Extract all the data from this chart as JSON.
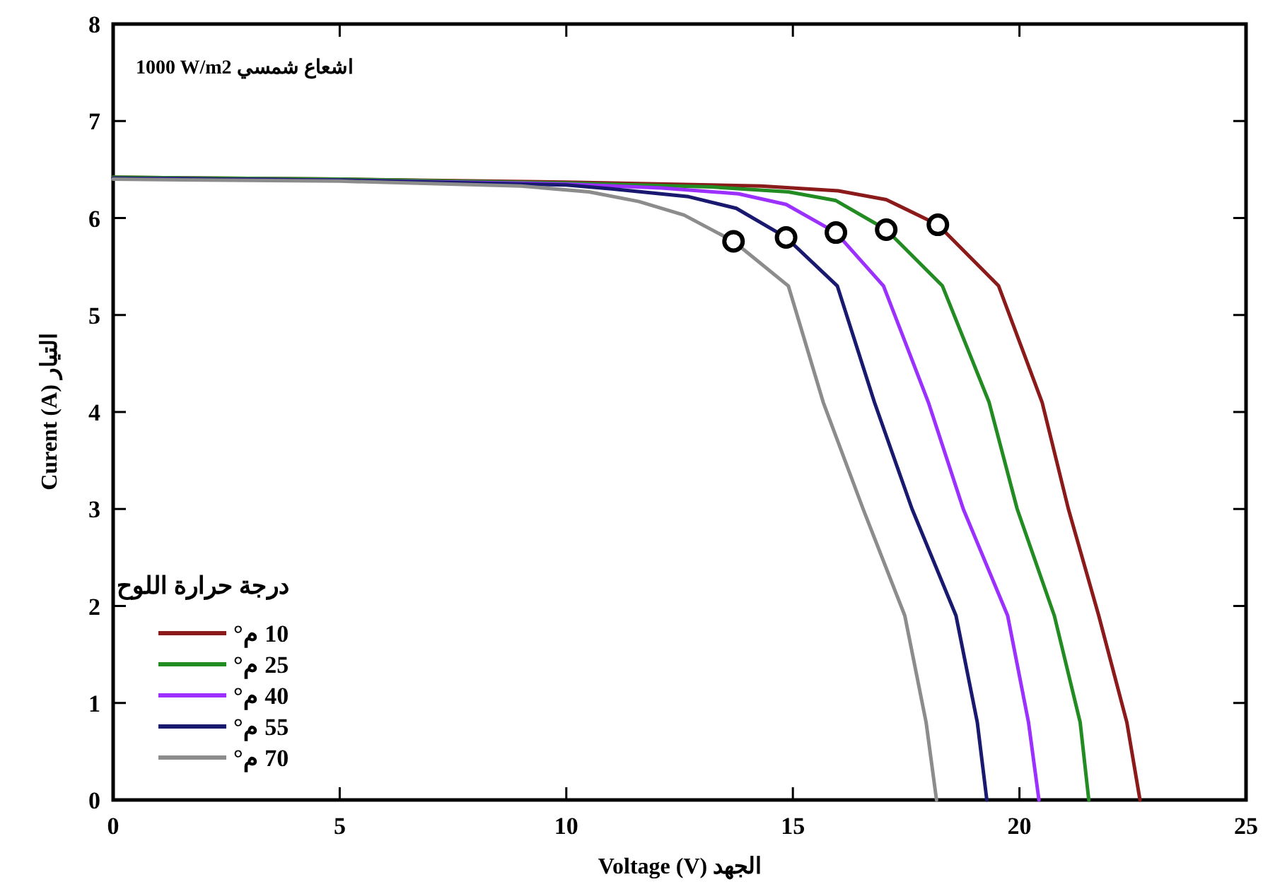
{
  "chart_data": {
    "type": "line",
    "xlabel": "Voltage (V) الجهد",
    "ylabel": "Curent (A) التيار",
    "legend_title": "درجة حرارة اللوح",
    "annotations": [
      "1000 W/m2 اشعاع شمسي"
    ],
    "xlim": [
      0,
      25
    ],
    "xticks": [
      0,
      5,
      10,
      15,
      20,
      25
    ],
    "ylim": [
      0,
      8
    ],
    "yticks": [
      0,
      1,
      2,
      3,
      4,
      5,
      6,
      7,
      8
    ],
    "grid": false,
    "legend": "bottom left",
    "marker": "none",
    "line_style": "solid",
    "series": [
      {
        "name": "10 م°",
        "color": "#8b1a1a",
        "x": [
          0,
          5,
          10,
          14.3,
          16,
          17.06,
          18.2,
          19.54,
          20.5,
          21.08,
          21.75,
          22.37,
          22.66
        ],
        "values": [
          6.42,
          6.4,
          6.37,
          6.33,
          6.28,
          6.19,
          5.93,
          5.3,
          4.1,
          3.0,
          1.9,
          0.8,
          0
        ]
      },
      {
        "name": "25 م°",
        "color": "#228b22",
        "x": [
          0,
          5,
          10,
          13.2,
          14.9,
          15.95,
          17.06,
          18.3,
          19.33,
          19.95,
          20.77,
          21.34,
          21.53
        ],
        "values": [
          6.42,
          6.4,
          6.36,
          6.32,
          6.27,
          6.18,
          5.88,
          5.3,
          4.1,
          3.0,
          1.9,
          0.8,
          0
        ]
      },
      {
        "name": "40 م°",
        "color": "#9b30ff",
        "x": [
          0,
          5,
          10,
          12.1,
          13.8,
          14.85,
          15.95,
          17.0,
          17.99,
          18.76,
          19.74,
          20.2,
          20.43
        ],
        "values": [
          6.41,
          6.39,
          6.35,
          6.31,
          6.25,
          6.14,
          5.85,
          5.3,
          4.1,
          3.0,
          1.9,
          0.8,
          0
        ]
      },
      {
        "name": "55 م°",
        "color": "#191970",
        "x": [
          0,
          5,
          10,
          11,
          12.7,
          13.75,
          14.85,
          15.98,
          16.8,
          17.63,
          18.6,
          19.07,
          19.28
        ],
        "values": [
          6.41,
          6.39,
          6.34,
          6.3,
          6.22,
          6.1,
          5.8,
          5.3,
          4.1,
          3.0,
          1.9,
          0.8,
          0
        ]
      },
      {
        "name": "70 م°",
        "color": "#8c8c8c",
        "x": [
          0,
          5,
          9,
          10.5,
          11.6,
          12.6,
          13.69,
          14.9,
          15.67,
          16.55,
          17.47,
          17.94,
          18.17
        ],
        "values": [
          6.4,
          6.38,
          6.33,
          6.27,
          6.17,
          6.03,
          5.76,
          5.3,
          4.1,
          3.0,
          1.9,
          0.8,
          0
        ]
      },
      {
        "type": "scatter",
        "marker": "circle",
        "color": "#000000",
        "x": [
          13.69,
          14.85,
          15.95,
          17.06,
          18.2
        ],
        "values": [
          5.76,
          5.8,
          5.85,
          5.88,
          5.93
        ]
      }
    ]
  }
}
